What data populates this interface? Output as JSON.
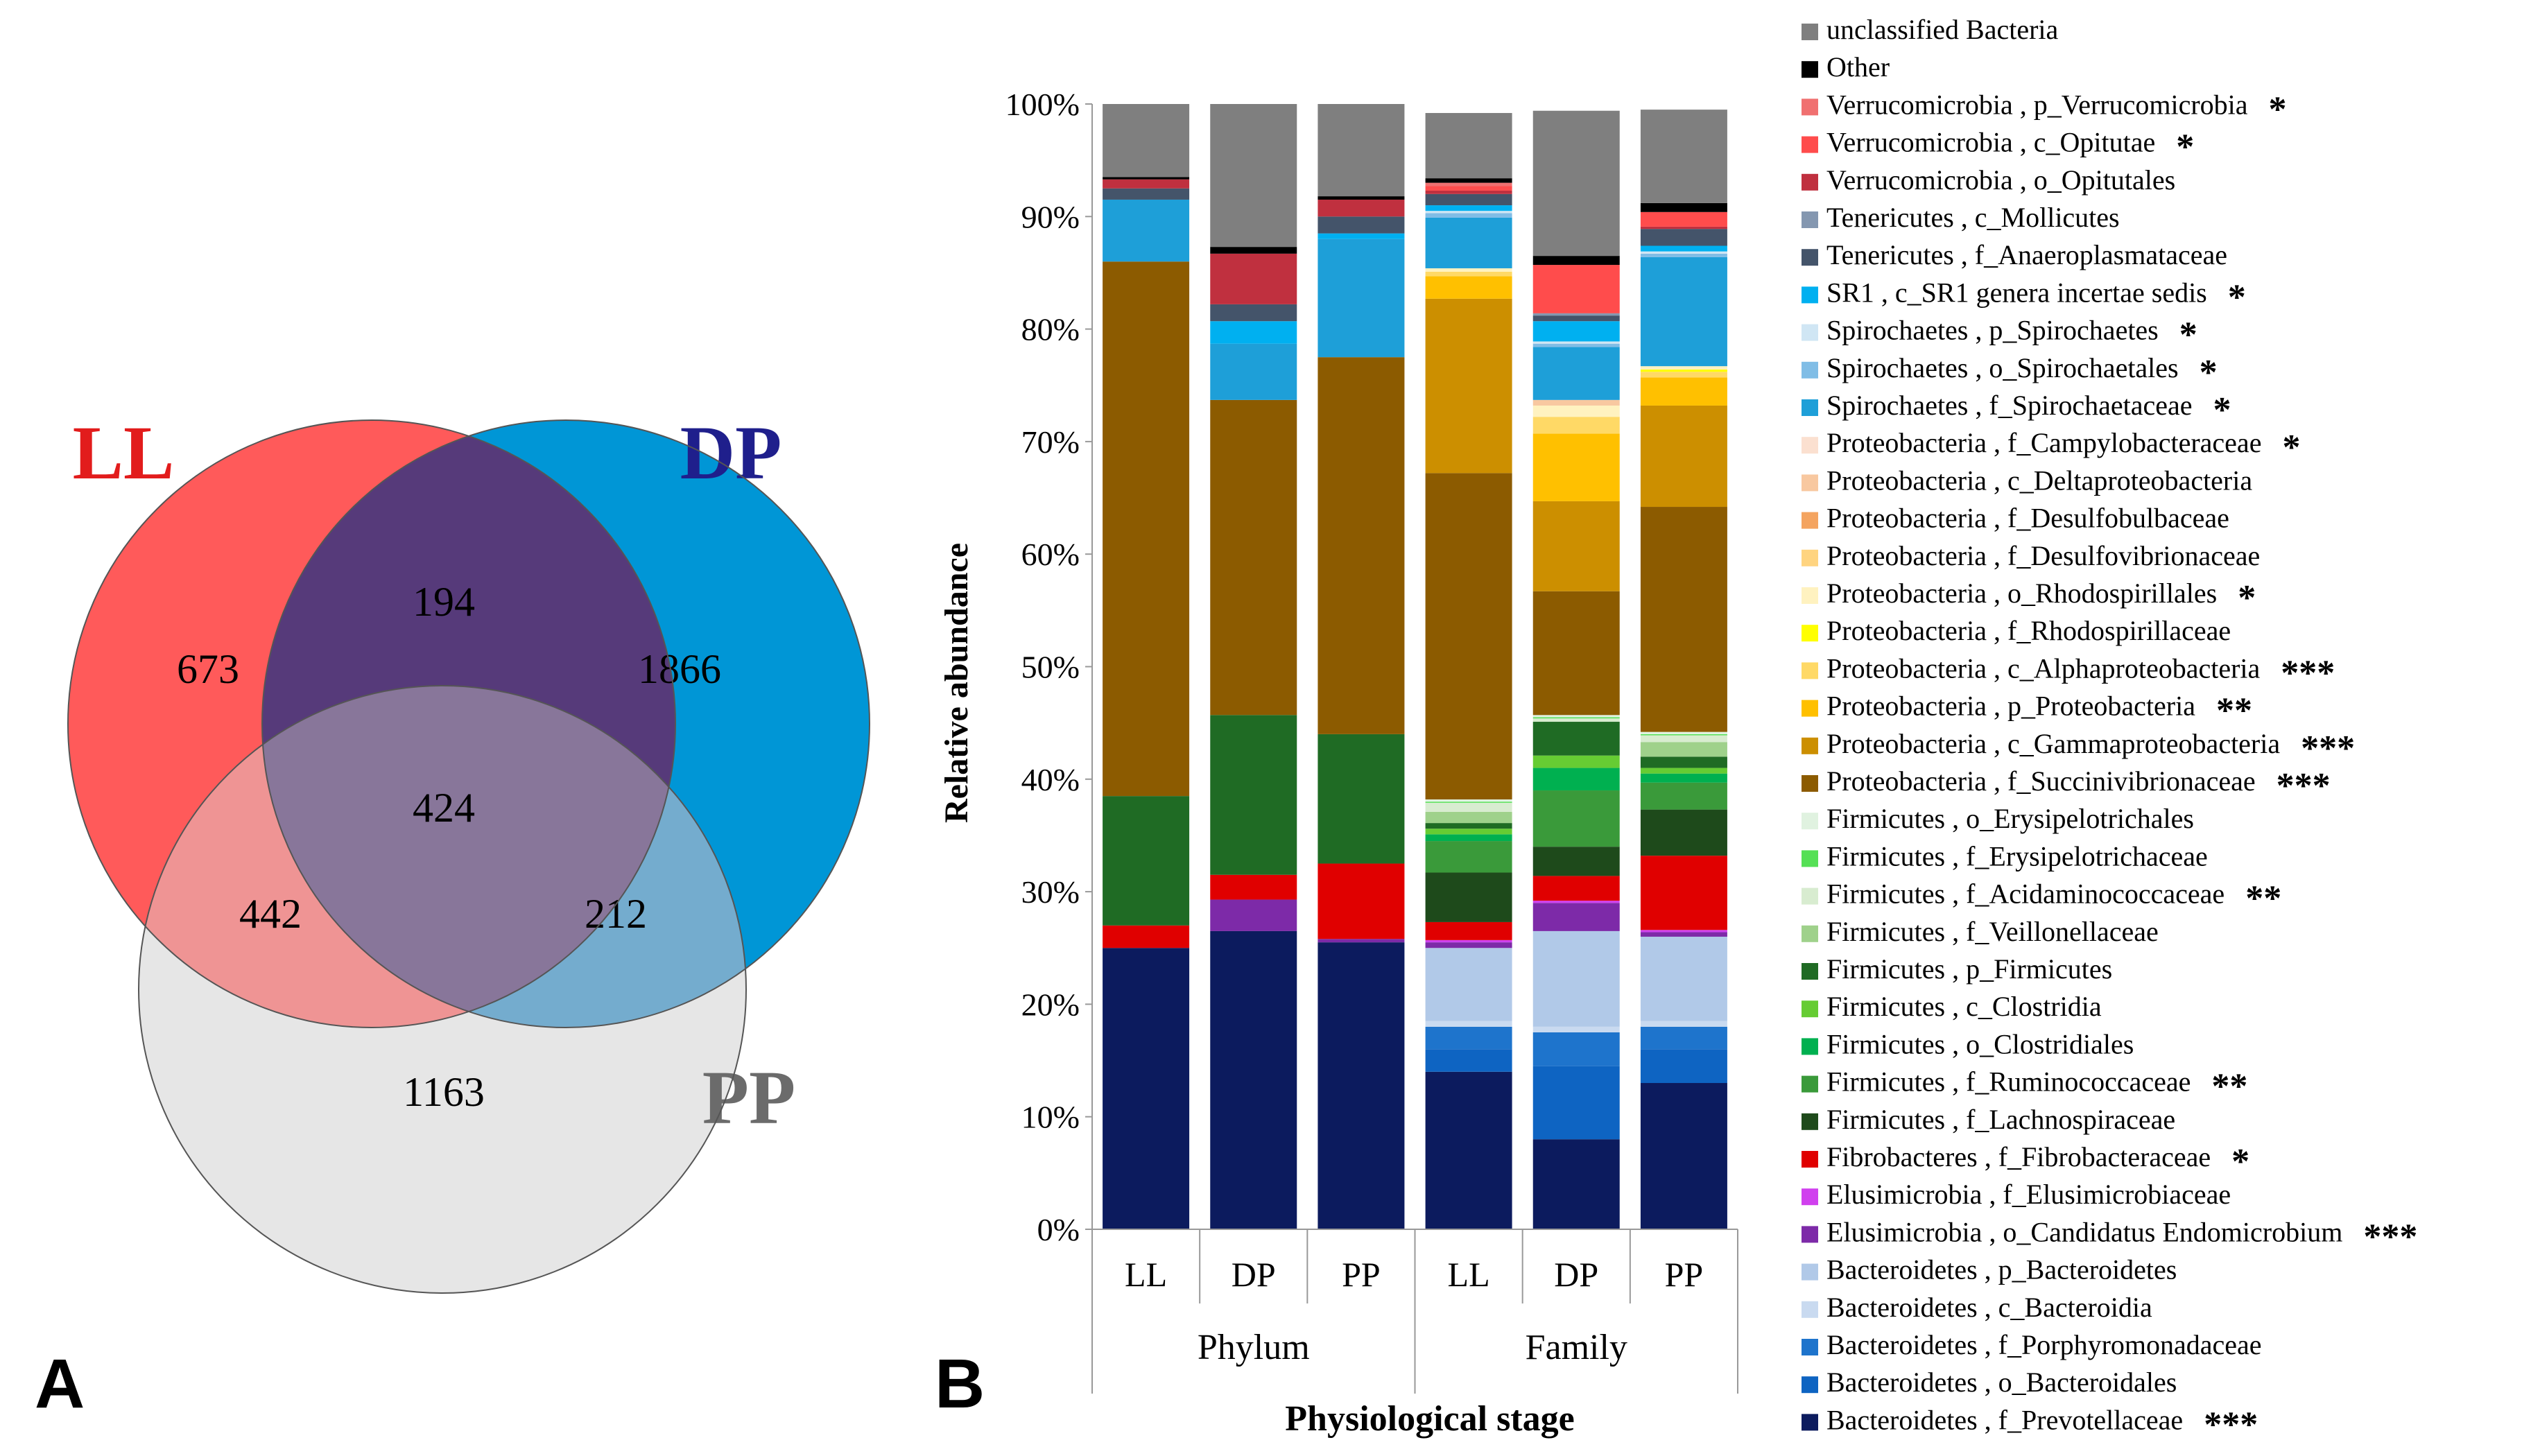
{
  "chart_data": [
    {
      "type": "venn",
      "panel_label": "A",
      "sets": [
        {
          "name": "LL",
          "color": "#ff5a5a",
          "label_color": "#e21c1c"
        },
        {
          "name": "DP",
          "color": "#0096d6",
          "label_color": "#1f1f8c"
        },
        {
          "name": "PP",
          "color": "#e6e6e6",
          "label_color": "#6b6b6b"
        }
      ],
      "regions": {
        "LL_only": 673,
        "DP_only": 1866,
        "PP_only": 1163,
        "LL_DP": 194,
        "LL_PP": 442,
        "DP_PP": 212,
        "LL_DP_PP": 424
      },
      "overlap_colors": {
        "LL_DP": "#563a7a",
        "LL_PP": "#ef9494",
        "DP_PP": "#74acce",
        "LL_DP_PP": "#88769a"
      }
    },
    {
      "type": "stacked_bar",
      "panel_label": "B",
      "ylabel": "Relative abundance",
      "xlabel": "Physiological stage",
      "ylim": [
        0,
        100
      ],
      "yticks": [
        "0%",
        "10%",
        "20%",
        "30%",
        "40%",
        "50%",
        "60%",
        "70%",
        "80%",
        "90%",
        "100%"
      ],
      "groups": [
        {
          "name": "Phylum",
          "categories": [
            "LL",
            "DP",
            "PP"
          ]
        },
        {
          "name": "Family",
          "categories": [
            "LL",
            "DP",
            "PP"
          ]
        }
      ],
      "series": [
        {
          "name": "Bacteroidetes , f_Prevotellaceae",
          "sig": "***",
          "color": "#0c1b5e",
          "values": [
            25,
            26.5,
            25.5,
            14,
            8,
            13
          ]
        },
        {
          "name": "Bacteroidetes , o_Bacteroidales",
          "sig": "",
          "color": "#0e64c2",
          "values": [
            0,
            0,
            0,
            2,
            6.5,
            3
          ]
        },
        {
          "name": "Bacteroidetes , f_Porphyromonadaceae",
          "sig": "",
          "color": "#1e74cc",
          "values": [
            0,
            0,
            0,
            2,
            3,
            2
          ]
        },
        {
          "name": "Bacteroidetes , c_Bacteroidia",
          "sig": "",
          "color": "#c9daf0",
          "values": [
            0,
            0,
            0,
            0.5,
            0.5,
            0.5
          ]
        },
        {
          "name": "Bacteroidetes , p_Bacteroidetes",
          "sig": "",
          "color": "#b1c9e8",
          "values": [
            0,
            0,
            0,
            6.5,
            8.5,
            7.5
          ]
        },
        {
          "name": "Elusimicrobia , o_Candidatus Endomicrobium",
          "sig": "***",
          "color": "#7d2aa8",
          "values": [
            0,
            2.8,
            0.3,
            0.5,
            2.5,
            0.4
          ]
        },
        {
          "name": "Elusimicrobia , f_Elusimicrobiaceae",
          "sig": "",
          "color": "#d040ee",
          "values": [
            0,
            0,
            0,
            0.2,
            0.2,
            0.2
          ]
        },
        {
          "name": "Fibrobacteres , f_Fibrobacteraceae",
          "sig": "*",
          "color": "#e00000",
          "values": [
            2,
            2.2,
            6.7,
            1.6,
            2.2,
            6.6
          ]
        },
        {
          "name": "Firmicutes , f_Lachnospiraceae",
          "sig": "",
          "color": "#1e4a1b",
          "values": [
            0,
            0,
            0,
            4.4,
            2.6,
            4.1
          ]
        },
        {
          "name": "Firmicutes , f_Ruminococcaceae",
          "sig": "**",
          "color": "#3a9a3a",
          "values": [
            0,
            0,
            0,
            2.8,
            5,
            2.4
          ]
        },
        {
          "name": "Firmicutes , o_Clostridiales",
          "sig": "",
          "color": "#00b050",
          "values": [
            0,
            0,
            0,
            0.6,
            2,
            0.8
          ]
        },
        {
          "name": "Firmicutes , c_Clostridia",
          "sig": "",
          "color": "#66cc33",
          "values": [
            0,
            0,
            0,
            0.5,
            1.1,
            0.5
          ]
        },
        {
          "name": "Firmicutes , p_Firmicutes",
          "sig": "",
          "color": "#1f6b24",
          "values": [
            11.5,
            14.2,
            11.5,
            0.5,
            3,
            1
          ]
        },
        {
          "name": "Firmicutes , f_Veillonellaceae",
          "sig": "",
          "color": "#9fd18b",
          "values": [
            0,
            0,
            0,
            1,
            0,
            1.3
          ]
        },
        {
          "name": "Firmicutes , f_Acidaminococcaceae",
          "sig": "**",
          "color": "#d8ecd0",
          "values": [
            0,
            0,
            0,
            0.8,
            0.3,
            0.6
          ]
        },
        {
          "name": "Firmicutes , f_Erysipelotrichaceae",
          "sig": "",
          "color": "#55e055",
          "values": [
            0,
            0,
            0,
            0.1,
            0.1,
            0.1
          ]
        },
        {
          "name": "Firmicutes , o_Erysipelotrichales",
          "sig": "",
          "color": "#e0f2e0",
          "values": [
            0,
            0,
            0,
            0.2,
            0.2,
            0.2
          ]
        },
        {
          "name": "Proteobacteria , f_Succinivibrionaceae",
          "sig": "***",
          "color": "#8c5b00",
          "values": [
            47.5,
            28,
            33.5,
            29,
            11,
            20
          ]
        },
        {
          "name": "Proteobacteria , c_Gammaproteobacteria",
          "sig": "***",
          "color": "#cc8f00",
          "values": [
            0,
            0,
            0,
            15.5,
            8,
            9
          ]
        },
        {
          "name": "Proteobacteria , p_Proteobacteria",
          "sig": "**",
          "color": "#ffc000",
          "values": [
            0,
            0,
            0,
            2,
            6,
            2.5
          ]
        },
        {
          "name": "Proteobacteria , c_Alphaproteobacteria",
          "sig": "***",
          "color": "#ffd966",
          "values": [
            0,
            0,
            0,
            0.4,
            1.5,
            0.5
          ]
        },
        {
          "name": "Proteobacteria , f_Rhodospirillaceae",
          "sig": "",
          "color": "#ffff00",
          "values": [
            0,
            0,
            0,
            0,
            0,
            0.2
          ]
        },
        {
          "name": "Proteobacteria , o_Rhodospirillales",
          "sig": "*",
          "color": "#fff2c0",
          "values": [
            0,
            0,
            0,
            0.3,
            1,
            0.3
          ]
        },
        {
          "name": "Proteobacteria , f_Desulfovibrionaceae",
          "sig": "",
          "color": "#ffd480",
          "values": [
            0,
            0,
            0,
            0,
            0,
            0
          ]
        },
        {
          "name": "Proteobacteria , f_Desulfobulbaceae",
          "sig": "",
          "color": "#f4a460",
          "values": [
            0,
            0,
            0,
            0,
            0,
            0
          ]
        },
        {
          "name": "Proteobacteria , c_Deltaproteobacteria",
          "sig": "",
          "color": "#f8c8a0",
          "values": [
            0,
            0,
            0,
            0,
            0.5,
            0
          ]
        },
        {
          "name": "Proteobacteria , f_Campylobacteraceae",
          "sig": "*",
          "color": "#fbe0d0",
          "values": [
            0,
            0,
            0,
            0,
            0,
            0
          ]
        },
        {
          "name": "Spirochaetes , f_Spirochaetaceae",
          "sig": "*",
          "color": "#1e9fd8",
          "values": [
            5.5,
            5,
            10.5,
            4.5,
            4.7,
            9.7
          ]
        },
        {
          "name": "Spirochaetes , o_Spirochaetales",
          "sig": "*",
          "color": "#80bde6",
          "values": [
            0,
            0,
            0,
            0.4,
            0.3,
            0.3
          ]
        },
        {
          "name": "Spirochaetes , p_Spirochaetes",
          "sig": "*",
          "color": "#d0e6f4",
          "values": [
            0,
            0,
            0,
            0.2,
            0.2,
            0.2
          ]
        },
        {
          "name": "SR1 , c_SR1 genera incertae sedis",
          "sig": "*",
          "color": "#00b0f0",
          "values": [
            0,
            2,
            0.5,
            0.5,
            1.8,
            0.5
          ]
        },
        {
          "name": "Tenericutes , f_Anaeroplasmataceae",
          "sig": "",
          "color": "#44546a",
          "values": [
            1,
            1.5,
            1.5,
            1,
            0.5,
            1.5
          ]
        },
        {
          "name": "Tenericutes , c_Mollicutes",
          "sig": "",
          "color": "#8497b0",
          "values": [
            0,
            0,
            0,
            0,
            0.2,
            0
          ]
        },
        {
          "name": "Verrucomicrobia , o_Opitutales",
          "sig": "",
          "color": "#c0303f",
          "values": [
            0.8,
            4.5,
            1.5,
            0.3,
            0,
            0.2
          ]
        },
        {
          "name": "Verrucomicrobia , c_Opitutae",
          "sig": "*",
          "color": "#ff4c4c",
          "values": [
            0,
            0,
            0,
            0.4,
            4.3,
            1.3
          ]
        },
        {
          "name": "Verrucomicrobia , p_Verrucomicrobia",
          "sig": "*",
          "color": "#f07070",
          "values": [
            0,
            0,
            0,
            0.3,
            0,
            0
          ]
        },
        {
          "name": "Other",
          "sig": "",
          "color": "#000000",
          "values": [
            0.2,
            0.6,
            0.3,
            0.4,
            0.8,
            0.8
          ]
        },
        {
          "name": "unclassified Bacteria",
          "sig": "",
          "color": "#7f7f7f",
          "values": [
            6.5,
            12.7,
            8.2,
            5.8,
            12.9,
            8.3
          ]
        }
      ]
    }
  ]
}
